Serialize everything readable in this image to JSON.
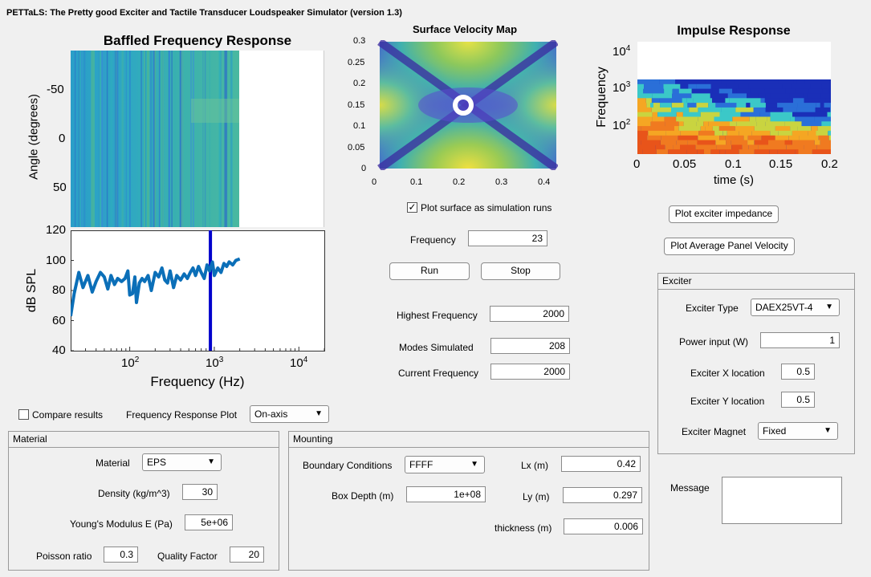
{
  "window": {
    "title": "PETTaLS: The Pretty good Exciter and Tactile Transducer Loudspeaker Simulator (version 1.3)"
  },
  "freq_plot": {
    "title": "Baffled Frequency Response",
    "angle_ylabel": "Angle (degrees)",
    "angle_ticks": [
      "-50",
      "0",
      "50"
    ],
    "spl_ylabel": "dB SPL",
    "spl_ticks": [
      "120",
      "100",
      "80",
      "60",
      "40"
    ],
    "xlabel": "Frequency (Hz)",
    "x_ticks": [
      {
        "base": "10",
        "exp": "2"
      },
      {
        "base": "10",
        "exp": "3"
      },
      {
        "base": "10",
        "exp": "4"
      }
    ]
  },
  "surface_plot": {
    "title": "Surface Velocity Map",
    "y_ticks": [
      "0.3",
      "0.25",
      "0.2",
      "0.15",
      "0.1",
      "0.05",
      "0"
    ],
    "x_ticks": [
      "0",
      "0.1",
      "0.2",
      "0.3",
      "0.4"
    ]
  },
  "impulse_plot": {
    "title": "Impulse Response",
    "ylabel": "Frequency",
    "y_ticks": [
      {
        "base": "10",
        "exp": "4"
      },
      {
        "base": "10",
        "exp": "3"
      },
      {
        "base": "10",
        "exp": "2"
      }
    ],
    "x_ticks": [
      "0",
      "0.05",
      "0.1",
      "0.15",
      "0.2"
    ],
    "xlabel": "time (s)"
  },
  "chart_data": {
    "type": "line",
    "title": "",
    "xlabel": "Frequency (Hz)",
    "ylabel": "dB SPL",
    "xscale": "log",
    "xlim": [
      20,
      20000
    ],
    "ylim": [
      40,
      120
    ],
    "series": [
      {
        "name": "SPL",
        "x": [
          20,
          22,
          25,
          28,
          32,
          36,
          40,
          45,
          50,
          55,
          60,
          66,
          72,
          80,
          88,
          95,
          100,
          108,
          115,
          120,
          130,
          140,
          150,
          165,
          180,
          200,
          220,
          240,
          260,
          280,
          300,
          330,
          360,
          400,
          440,
          480,
          520,
          560,
          600,
          650,
          700,
          760,
          820,
          880,
          950,
          1000,
          1100,
          1200,
          1300,
          1400,
          1500,
          1650,
          1800,
          2000
        ],
        "y": [
          63,
          78,
          92,
          82,
          90,
          79,
          86,
          92,
          89,
          81,
          90,
          84,
          88,
          86,
          88,
          93,
          77,
          78,
          89,
          72,
          85,
          88,
          86,
          90,
          80,
          92,
          89,
          95,
          87,
          85,
          93,
          82,
          90,
          87,
          91,
          88,
          92,
          95,
          90,
          96,
          92,
          88,
          97,
          93,
          99,
          90,
          95,
          92,
          98,
          96,
          99,
          97,
          100,
          101
        ]
      }
    ],
    "marker_frequency": 900
  },
  "controls": {
    "plot_surface_label": "Plot surface as simulation runs",
    "frequency_label": "Frequency",
    "frequency_value": "23",
    "run_label": "Run",
    "stop_label": "Stop",
    "highest_freq_label": "Highest Frequency",
    "highest_freq_value": "2000",
    "modes_label": "Modes Simulated",
    "modes_value": "208",
    "current_freq_label": "Current Frequency",
    "current_freq_value": "2000",
    "plot_impedance_label": "Plot exciter impedance",
    "plot_velocity_label": "Plot Average Panel Velocity",
    "compare_label": "Compare results",
    "freq_resp_plot_label": "Frequency Response Plot",
    "freq_resp_plot_value": "On-axis"
  },
  "exciter": {
    "title": "Exciter",
    "type_label": "Exciter Type",
    "type_value": "DAEX25VT-4",
    "power_label": "Power input (W)",
    "power_value": "1",
    "x_label": "Exciter X location",
    "x_value": "0.5",
    "y_label": "Exciter Y location",
    "y_value": "0.5",
    "magnet_label": "Exciter Magnet",
    "magnet_value": "Fixed"
  },
  "message": {
    "label": "Message"
  },
  "material": {
    "title": "Material",
    "material_label": "Material",
    "material_value": "EPS",
    "density_label": "Density (kg/m^3)",
    "density_value": "30",
    "youngs_label": "Young's Modulus E (Pa)",
    "youngs_value": "5e+06",
    "poisson_label": "Poisson ratio",
    "poisson_value": "0.3",
    "quality_label": "Quality Factor",
    "quality_value": "20"
  },
  "mounting": {
    "title": "Mounting",
    "bc_label": "Boundary Conditions",
    "bc_value": "FFFF",
    "box_label": "Box Depth (m)",
    "box_value": "1e+08",
    "lx_label": "Lx (m)",
    "lx_value": "0.42",
    "ly_label": "Ly (m)",
    "ly_value": "0.297",
    "thickness_label": "thickness (m)",
    "thickness_value": "0.006"
  }
}
